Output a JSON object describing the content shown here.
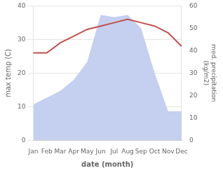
{
  "chart_data": {
    "type": "line",
    "categories": [
      "Jan",
      "Feb",
      "Mar",
      "Apr",
      "May",
      "Jun",
      "Jul",
      "Aug",
      "Sep",
      "Oct",
      "Nov",
      "Dec"
    ],
    "series": [
      {
        "type": "line",
        "color": "#c0504d",
        "values": [
          26,
          26,
          29,
          31,
          33,
          34,
          35,
          36,
          35,
          34,
          32,
          28
        ]
      },
      {
        "type": "area",
        "color": "#c5cff0",
        "axis": "y2",
        "values": [
          16,
          19,
          22,
          27,
          35,
          56,
          55,
          56,
          50,
          30,
          13,
          13
        ]
      }
    ],
    "xlabel": "date (month)",
    "ylabel": "max temp (C)",
    "y2label": "med. precipitation\n(kg/m2)",
    "ylim": [
      0,
      40
    ],
    "yticks": [
      0,
      10,
      20,
      30,
      40
    ],
    "y2lim": [
      0,
      60
    ],
    "y2ticks": [
      0,
      10,
      20,
      30,
      40,
      50,
      60
    ],
    "grid": true
  }
}
